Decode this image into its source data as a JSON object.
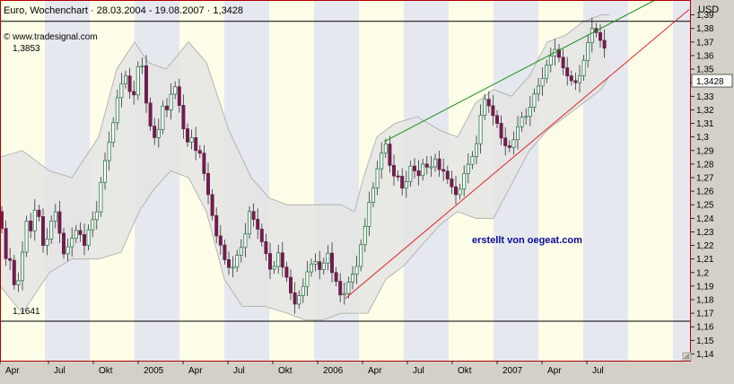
{
  "header": {
    "title": "Euro, Wochenchart · 28.03.2004 - 19.08.2007 · 1,3428",
    "source": "© www.tradesignal.com",
    "currency": "USD"
  },
  "annotations": {
    "watermark": "erstellt von oegeat.com",
    "level_high": "1,3853",
    "level_low": "1,1641",
    "price_tag": "1,3428"
  },
  "colors": {
    "price_bg": "#ffffff",
    "band_fill": "#e4e4e4",
    "band_stroke": "#a8a8a8",
    "stripe_a": "#fdfde8",
    "stripe_b": "#e6e8f0",
    "up_candle": "#2a7a4a",
    "down_candle": "#6e1f4e",
    "trend_upper": "#189018",
    "trend_lower": "#e02020",
    "watermark": "#0a0a9a",
    "frame": "#b00000"
  },
  "chart_data": {
    "type": "candlestick",
    "title": "Euro, Wochenchart",
    "date_range": "28.03.2004 - 19.08.2007",
    "last_value": 1.3428,
    "ylabel": "USD",
    "ylim": [
      1.135,
      1.401
    ],
    "y_ticks": [
      1.14,
      1.15,
      1.16,
      1.17,
      1.18,
      1.19,
      1.2,
      1.21,
      1.22,
      1.23,
      1.24,
      1.25,
      1.26,
      1.27,
      1.28,
      1.29,
      1.3,
      1.31,
      1.32,
      1.33,
      1.34,
      1.35,
      1.36,
      1.37,
      1.38,
      1.39
    ],
    "x_ticks": [
      "Apr",
      "Jul",
      "Okt",
      "2005",
      "Apr",
      "Jul",
      "Okt",
      "2006",
      "Apr",
      "Jul",
      "Okt",
      "2007",
      "Apr",
      "Jul"
    ],
    "horizontal_lines": [
      1.3853,
      1.1641
    ],
    "price_path": [
      [
        0,
        1.245
      ],
      [
        4,
        1.22
      ],
      [
        8,
        1.205
      ],
      [
        12,
        1.21
      ],
      [
        16,
        1.19
      ],
      [
        18,
        1.185
      ],
      [
        22,
        1.2
      ],
      [
        26,
        1.22
      ],
      [
        30,
        1.24
      ],
      [
        34,
        1.23
      ],
      [
        38,
        1.245
      ],
      [
        42,
        1.25
      ],
      [
        46,
        1.225
      ],
      [
        50,
        1.215
      ],
      [
        54,
        1.23
      ],
      [
        58,
        1.24
      ],
      [
        62,
        1.245
      ],
      [
        64,
        1.235
      ],
      [
        68,
        1.225
      ],
      [
        72,
        1.21
      ],
      [
        76,
        1.22
      ],
      [
        80,
        1.225
      ],
      [
        84,
        1.23
      ],
      [
        88,
        1.235
      ],
      [
        92,
        1.215
      ],
      [
        96,
        1.225
      ],
      [
        100,
        1.235
      ],
      [
        104,
        1.24
      ],
      [
        108,
        1.245
      ],
      [
        112,
        1.265
      ],
      [
        116,
        1.28
      ],
      [
        120,
        1.29
      ],
      [
        124,
        1.305
      ],
      [
        128,
        1.315
      ],
      [
        132,
        1.335
      ],
      [
        136,
        1.34
      ],
      [
        140,
        1.345
      ],
      [
        144,
        1.335
      ],
      [
        148,
        1.325
      ],
      [
        152,
        1.345
      ],
      [
        156,
        1.36
      ],
      [
        158,
        1.355
      ],
      [
        162,
        1.33
      ],
      [
        166,
        1.31
      ],
      [
        170,
        1.305
      ],
      [
        174,
        1.295
      ],
      [
        178,
        1.31
      ],
      [
        182,
        1.325
      ],
      [
        186,
        1.32
      ],
      [
        190,
        1.33
      ],
      [
        194,
        1.34
      ],
      [
        198,
        1.33
      ],
      [
        202,
        1.315
      ],
      [
        206,
        1.3
      ],
      [
        210,
        1.295
      ],
      [
        214,
        1.3
      ],
      [
        218,
        1.29
      ],
      [
        222,
        1.29
      ],
      [
        226,
        1.28
      ],
      [
        230,
        1.26
      ],
      [
        234,
        1.255
      ],
      [
        238,
        1.235
      ],
      [
        242,
        1.225
      ],
      [
        246,
        1.22
      ],
      [
        250,
        1.21
      ],
      [
        254,
        1.205
      ],
      [
        258,
        1.2
      ],
      [
        262,
        1.21
      ],
      [
        266,
        1.215
      ],
      [
        270,
        1.22
      ],
      [
        274,
        1.23
      ],
      [
        278,
        1.245
      ],
      [
        282,
        1.24
      ],
      [
        286,
        1.235
      ],
      [
        290,
        1.225
      ],
      [
        294,
        1.22
      ],
      [
        298,
        1.21
      ],
      [
        302,
        1.2
      ],
      [
        306,
        1.205
      ],
      [
        310,
        1.215
      ],
      [
        314,
        1.205
      ],
      [
        318,
        1.2
      ],
      [
        322,
        1.19
      ],
      [
        326,
        1.18
      ],
      [
        330,
        1.175
      ],
      [
        334,
        1.185
      ],
      [
        338,
        1.19
      ],
      [
        342,
        1.2
      ],
      [
        346,
        1.205
      ],
      [
        350,
        1.21
      ],
      [
        354,
        1.205
      ],
      [
        358,
        1.2
      ],
      [
        362,
        1.21
      ],
      [
        366,
        1.215
      ],
      [
        370,
        1.2
      ],
      [
        374,
        1.195
      ],
      [
        378,
        1.185
      ],
      [
        382,
        1.18
      ],
      [
        386,
        1.19
      ],
      [
        390,
        1.195
      ],
      [
        394,
        1.2
      ],
      [
        398,
        1.205
      ],
      [
        402,
        1.22
      ],
      [
        406,
        1.23
      ],
      [
        410,
        1.25
      ],
      [
        414,
        1.255
      ],
      [
        418,
        1.27
      ],
      [
        422,
        1.28
      ],
      [
        426,
        1.29
      ],
      [
        430,
        1.295
      ],
      [
        434,
        1.28
      ],
      [
        438,
        1.27
      ],
      [
        442,
        1.275
      ],
      [
        446,
        1.265
      ],
      [
        450,
        1.26
      ],
      [
        454,
        1.27
      ],
      [
        458,
        1.28
      ],
      [
        462,
        1.275
      ],
      [
        466,
        1.27
      ],
      [
        470,
        1.28
      ],
      [
        474,
        1.28
      ],
      [
        478,
        1.275
      ],
      [
        482,
        1.28
      ],
      [
        486,
        1.285
      ],
      [
        490,
        1.275
      ],
      [
        494,
        1.275
      ],
      [
        498,
        1.27
      ],
      [
        502,
        1.265
      ],
      [
        506,
        1.26
      ],
      [
        510,
        1.255
      ],
      [
        514,
        1.265
      ],
      [
        518,
        1.275
      ],
      [
        522,
        1.28
      ],
      [
        526,
        1.285
      ],
      [
        530,
        1.29
      ],
      [
        534,
        1.31
      ],
      [
        538,
        1.325
      ],
      [
        542,
        1.33
      ],
      [
        546,
        1.32
      ],
      [
        550,
        1.315
      ],
      [
        554,
        1.31
      ],
      [
        558,
        1.3
      ],
      [
        562,
        1.295
      ],
      [
        566,
        1.29
      ],
      [
        570,
        1.295
      ],
      [
        574,
        1.3
      ],
      [
        578,
        1.31
      ],
      [
        582,
        1.315
      ],
      [
        586,
        1.315
      ],
      [
        590,
        1.32
      ],
      [
        594,
        1.33
      ],
      [
        598,
        1.335
      ],
      [
        602,
        1.34
      ],
      [
        606,
        1.345
      ],
      [
        610,
        1.355
      ],
      [
        614,
        1.36
      ],
      [
        618,
        1.365
      ],
      [
        622,
        1.36
      ],
      [
        626,
        1.355
      ],
      [
        630,
        1.345
      ],
      [
        634,
        1.345
      ],
      [
        638,
        1.34
      ],
      [
        642,
        1.34
      ],
      [
        646,
        1.345
      ],
      [
        650,
        1.355
      ],
      [
        654,
        1.365
      ],
      [
        658,
        1.38
      ],
      [
        662,
        1.38
      ],
      [
        666,
        1.375
      ],
      [
        670,
        1.37
      ],
      [
        674,
        1.365
      ],
      [
        676,
        1.345
      ],
      [
        678,
        1.3428
      ]
    ],
    "band_upper": [
      [
        0,
        1.285
      ],
      [
        25,
        1.29
      ],
      [
        55,
        1.275
      ],
      [
        80,
        1.27
      ],
      [
        110,
        1.3
      ],
      [
        130,
        1.35
      ],
      [
        150,
        1.37
      ],
      [
        165,
        1.355
      ],
      [
        185,
        1.35
      ],
      [
        210,
        1.37
      ],
      [
        230,
        1.355
      ],
      [
        255,
        1.305
      ],
      [
        280,
        1.27
      ],
      [
        300,
        1.255
      ],
      [
        320,
        1.25
      ],
      [
        340,
        1.25
      ],
      [
        360,
        1.25
      ],
      [
        380,
        1.25
      ],
      [
        395,
        1.245
      ],
      [
        405,
        1.27
      ],
      [
        420,
        1.3
      ],
      [
        440,
        1.31
      ],
      [
        465,
        1.315
      ],
      [
        490,
        1.305
      ],
      [
        510,
        1.3
      ],
      [
        530,
        1.325
      ],
      [
        550,
        1.335
      ],
      [
        570,
        1.33
      ],
      [
        590,
        1.345
      ],
      [
        610,
        1.37
      ],
      [
        630,
        1.375
      ],
      [
        650,
        1.385
      ],
      [
        670,
        1.39
      ],
      [
        679,
        1.39
      ]
    ],
    "band_lower": [
      [
        0,
        1.19
      ],
      [
        25,
        1.17
      ],
      [
        55,
        1.2
      ],
      [
        80,
        1.21
      ],
      [
        110,
        1.21
      ],
      [
        135,
        1.215
      ],
      [
        155,
        1.245
      ],
      [
        170,
        1.26
      ],
      [
        190,
        1.275
      ],
      [
        210,
        1.27
      ],
      [
        230,
        1.245
      ],
      [
        250,
        1.195
      ],
      [
        270,
        1.175
      ],
      [
        295,
        1.175
      ],
      [
        320,
        1.17
      ],
      [
        340,
        1.165
      ],
      [
        360,
        1.165
      ],
      [
        380,
        1.17
      ],
      [
        395,
        1.17
      ],
      [
        410,
        1.17
      ],
      [
        430,
        1.195
      ],
      [
        450,
        1.205
      ],
      [
        470,
        1.22
      ],
      [
        490,
        1.235
      ],
      [
        510,
        1.245
      ],
      [
        530,
        1.24
      ],
      [
        550,
        1.24
      ],
      [
        570,
        1.265
      ],
      [
        590,
        1.29
      ],
      [
        610,
        1.305
      ],
      [
        630,
        1.315
      ],
      [
        650,
        1.325
      ],
      [
        670,
        1.335
      ],
      [
        679,
        1.345
      ]
    ],
    "trendlines": [
      {
        "name": "upper",
        "points": [
          [
            428,
            1.2965
          ],
          [
            730,
            1.401
          ]
        ]
      },
      {
        "name": "lower",
        "points": [
          [
            385,
            1.181
          ],
          [
            768,
            1.394
          ]
        ]
      }
    ]
  }
}
